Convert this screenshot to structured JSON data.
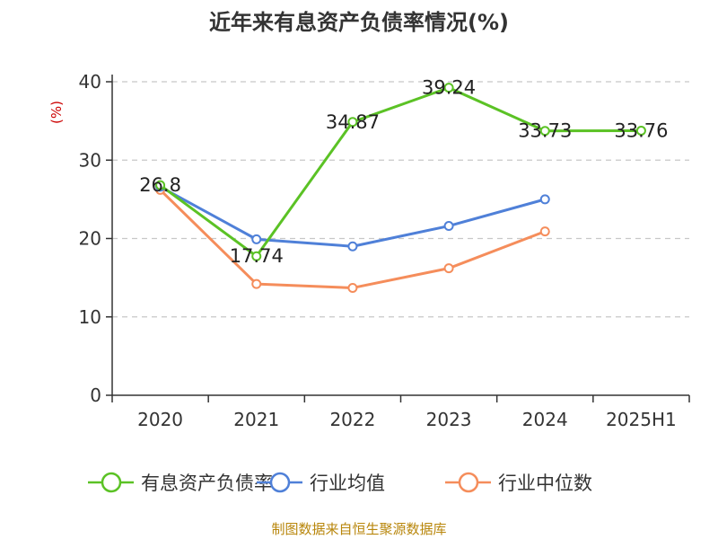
{
  "chart_data": {
    "type": "line",
    "title": "近年来有息资产负债率情况(%)",
    "ylabel": "(%)",
    "categories": [
      "2020",
      "2021",
      "2022",
      "2023",
      "2024",
      "2025H1"
    ],
    "ylim": [
      0,
      40
    ],
    "yticks": [
      0,
      10,
      20,
      30,
      40
    ],
    "grid": true,
    "legend_position": "bottom",
    "series": [
      {
        "name": "有息资产负债率",
        "color": "#5bc225",
        "values": [
          26.8,
          17.74,
          34.87,
          39.24,
          33.73,
          33.76
        ],
        "labels": [
          "26.8",
          "17.74",
          "34.87",
          "39.24",
          "33.73",
          "33.76"
        ]
      },
      {
        "name": "行业均值",
        "color": "#4f80d8",
        "values": [
          26.6,
          19.9,
          19.0,
          21.6,
          25.0,
          null
        ]
      },
      {
        "name": "行业中位数",
        "color": "#f58d5b",
        "values": [
          26.2,
          14.2,
          13.7,
          16.2,
          20.9,
          null
        ]
      }
    ]
  },
  "source": "制图数据来自恒生聚源数据库"
}
